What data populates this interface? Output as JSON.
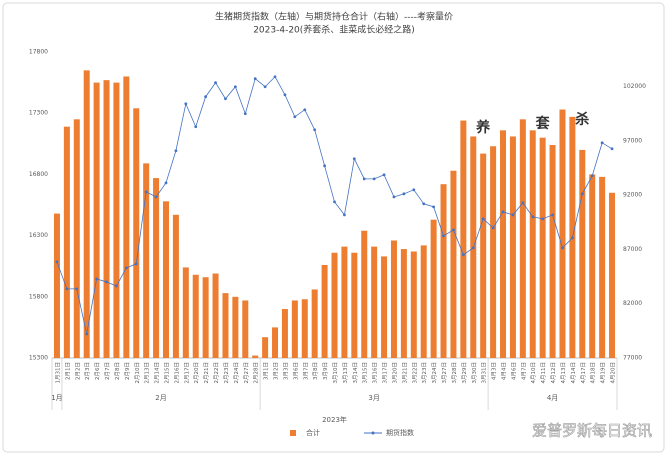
{
  "chart_data": {
    "type": "bar_line",
    "title": "生猪期货指数（左轴）与期货持仓合计（右轴）----考察量价",
    "subtitle": "2023-4-20(养套杀、韭菜成长必经之路)",
    "categories": [
      "1月31日",
      "2月1日",
      "2月2日",
      "2月3日",
      "2月6日",
      "2月7日",
      "2月8日",
      "2月9日",
      "2月10日",
      "2月13日",
      "2月14日",
      "2月15日",
      "2月16日",
      "2月17日",
      "2月20日",
      "2月21日",
      "2月22日",
      "2月23日",
      "2月24日",
      "2月27日",
      "2月28日",
      "3月1日",
      "3月2日",
      "3月3日",
      "3月6日",
      "3月7日",
      "3月8日",
      "3月9日",
      "3月10日",
      "3月13日",
      "3月14日",
      "3月15日",
      "3月16日",
      "3月17日",
      "3月20日",
      "3月21日",
      "3月22日",
      "3月23日",
      "3月24日",
      "3月27日",
      "3月28日",
      "3月29日",
      "3月30日",
      "3月31日",
      "4月3日",
      "4月4日",
      "4月6日",
      "4月7日",
      "4月10日",
      "4月11日",
      "4月12日",
      "4月13日",
      "4月14日",
      "4月17日",
      "4月18日",
      "4月19日",
      "4月20日"
    ],
    "x_groups": [
      "1月",
      "2月",
      "3月",
      "4月"
    ],
    "x_axis_label": "2023年",
    "series": [
      {
        "name": "合计",
        "type": "bar",
        "color": "#ed7d31",
        "axis": "y",
        "values": [
          16480,
          17190,
          17250,
          17650,
          17550,
          17570,
          17550,
          17600,
          17340,
          16890,
          16770,
          16580,
          16470,
          16040,
          15980,
          15960,
          15990,
          15830,
          15800,
          15770,
          15320,
          15470,
          15550,
          15700,
          15770,
          15780,
          15860,
          16060,
          16160,
          16210,
          16160,
          16340,
          16210,
          16130,
          16260,
          16190,
          16170,
          16220,
          16430,
          16720,
          16830,
          17240,
          17110,
          16970,
          17030,
          17160,
          17110,
          17250,
          17160,
          17100,
          17040,
          17330,
          17270,
          17000,
          16800,
          16780,
          16650
        ]
      },
      {
        "name": "期货指数",
        "type": "line",
        "color": "#4472c4",
        "axis": "y2",
        "values": [
          85860,
          83370,
          83370,
          79210,
          84290,
          84010,
          83640,
          85300,
          85670,
          92310,
          91850,
          93140,
          96100,
          100430,
          98310,
          101080,
          102370,
          100890,
          102000,
          99510,
          102740,
          102000,
          102920,
          101260,
          99230,
          99880,
          98030,
          94710,
          91390,
          90190,
          95360,
          93510,
          93510,
          93880,
          91850,
          92130,
          92500,
          91210,
          90930,
          88250,
          88810,
          86510,
          87150,
          89820,
          88990,
          90470,
          90190,
          91300,
          90010,
          89820,
          90190,
          87150,
          88070,
          92130,
          93790,
          96830,
          96280
        ]
      }
    ],
    "ylim": [
      15300,
      17800
    ],
    "yticks": [
      15300,
      15800,
      16300,
      16800,
      17300,
      17800
    ],
    "y2lim": [
      77000,
      105200
    ],
    "y2ticks": [
      77000,
      82000,
      87000,
      92000,
      97000,
      102000
    ],
    "annotations": [
      {
        "text": "养",
        "index": 43
      },
      {
        "text": "套",
        "index": 49
      },
      {
        "text": "杀",
        "index": 53
      }
    ],
    "watermark": "爱普罗斯每日资讯"
  }
}
